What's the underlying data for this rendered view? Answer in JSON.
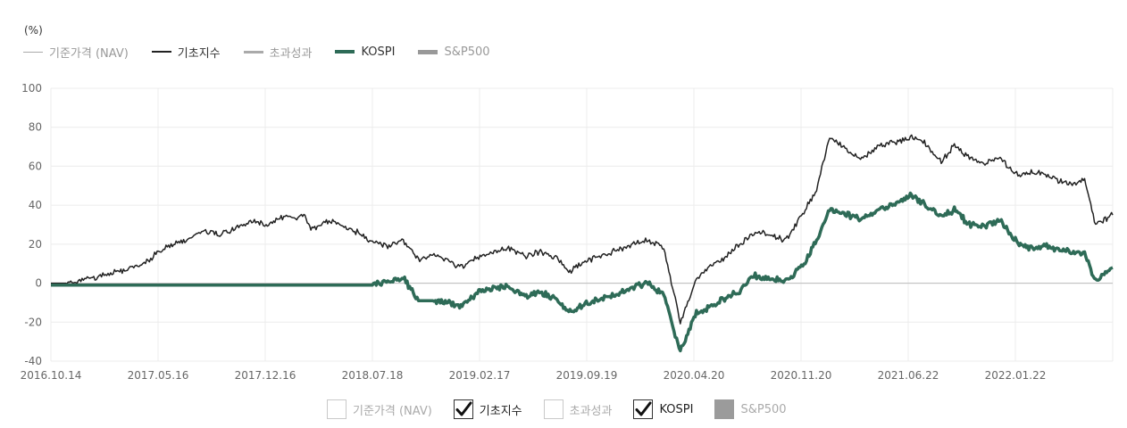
{
  "unit_label": "(%)",
  "legend": [
    {
      "label": "기준가격 (NAV)",
      "color": "#aaaaaa",
      "stroke": 1,
      "text_color": "#999999"
    },
    {
      "label": "기초지수",
      "color": "#222222",
      "stroke": 2,
      "text_color": "#333333"
    },
    {
      "label": "초과성과",
      "color": "#aaaaaa",
      "stroke": 3,
      "text_color": "#999999"
    },
    {
      "label": "KOSPI",
      "color": "#2e6b57",
      "stroke": 4,
      "text_color": "#333333"
    },
    {
      "label": "S&P500",
      "color": "#999999",
      "stroke": 5,
      "text_color": "#999999"
    }
  ],
  "toggles": [
    {
      "label": "기준가격 (NAV)",
      "checked": false,
      "filled": false
    },
    {
      "label": "기초지수",
      "checked": true,
      "filled": false
    },
    {
      "label": "초과성과",
      "checked": false,
      "filled": false
    },
    {
      "label": "KOSPI",
      "checked": true,
      "filled": false
    },
    {
      "label": "S&P500",
      "checked": false,
      "filled": true
    }
  ],
  "chart_data": {
    "type": "line",
    "ylim": [
      -40,
      100
    ],
    "y_ticks": [
      100,
      80,
      60,
      40,
      20,
      0,
      -20,
      -40
    ],
    "x_ticks": [
      "2016.10.14",
      "2017.05.16",
      "2017.12.16",
      "2018.07.18",
      "2019.02.17",
      "2019.09.19",
      "2020.04.20",
      "2020.11.20",
      "2021.06.22",
      "2022.01.22"
    ],
    "x_range": [
      "2016-10-14",
      "2022-07-27"
    ],
    "grid": true,
    "legend_position": "top-left",
    "series": [
      {
        "name": "기초지수",
        "color": "#222222",
        "width": 1.5,
        "points": [
          [
            "2016-10-14",
            0
          ],
          [
            "2016-11-15",
            0
          ],
          [
            "2016-12-15",
            2
          ],
          [
            "2017-01-15",
            3
          ],
          [
            "2017-02-15",
            6
          ],
          [
            "2017-03-15",
            7
          ],
          [
            "2017-04-15",
            10
          ],
          [
            "2017-05-16",
            16
          ],
          [
            "2017-06-15",
            20
          ],
          [
            "2017-07-15",
            23
          ],
          [
            "2017-08-15",
            27
          ],
          [
            "2017-09-15",
            25
          ],
          [
            "2017-10-15",
            28
          ],
          [
            "2017-11-15",
            32
          ],
          [
            "2017-12-16",
            30
          ],
          [
            "2018-01-15",
            34
          ],
          [
            "2018-02-15",
            33
          ],
          [
            "2018-03-01",
            36
          ],
          [
            "2018-03-15",
            27
          ],
          [
            "2018-04-15",
            32
          ],
          [
            "2018-05-15",
            30
          ],
          [
            "2018-06-15",
            26
          ],
          [
            "2018-07-18",
            21
          ],
          [
            "2018-08-15",
            19
          ],
          [
            "2018-09-15",
            22
          ],
          [
            "2018-10-15",
            12
          ],
          [
            "2018-11-15",
            15
          ],
          [
            "2018-12-15",
            11
          ],
          [
            "2019-01-05",
            8
          ],
          [
            "2019-02-17",
            14
          ],
          [
            "2019-03-15",
            16
          ],
          [
            "2019-04-15",
            18
          ],
          [
            "2019-05-15",
            14
          ],
          [
            "2019-06-15",
            16
          ],
          [
            "2019-07-15",
            13
          ],
          [
            "2019-08-10",
            6
          ],
          [
            "2019-09-19",
            12
          ],
          [
            "2019-10-15",
            14
          ],
          [
            "2019-11-15",
            17
          ],
          [
            "2019-12-15",
            20
          ],
          [
            "2020-01-15",
            22
          ],
          [
            "2020-02-15",
            18
          ],
          [
            "2020-03-19",
            -20
          ],
          [
            "2020-04-20",
            3
          ],
          [
            "2020-05-15",
            8
          ],
          [
            "2020-06-15",
            13
          ],
          [
            "2020-07-15",
            20
          ],
          [
            "2020-08-15",
            26
          ],
          [
            "2020-09-15",
            25
          ],
          [
            "2020-10-15",
            22
          ],
          [
            "2020-11-20",
            37
          ],
          [
            "2020-12-15",
            48
          ],
          [
            "2021-01-10",
            75
          ],
          [
            "2021-02-15",
            68
          ],
          [
            "2021-03-15",
            64
          ],
          [
            "2021-04-15",
            70
          ],
          [
            "2021-05-15",
            72
          ],
          [
            "2021-06-22",
            75
          ],
          [
            "2021-07-15",
            73
          ],
          [
            "2021-08-20",
            62
          ],
          [
            "2021-09-15",
            71
          ],
          [
            "2021-10-15",
            64
          ],
          [
            "2021-11-15",
            61
          ],
          [
            "2021-12-15",
            64
          ],
          [
            "2022-01-22",
            55
          ],
          [
            "2022-02-15",
            57
          ],
          [
            "2022-03-15",
            56
          ],
          [
            "2022-04-15",
            52
          ],
          [
            "2022-05-15",
            51
          ],
          [
            "2022-06-01",
            53
          ],
          [
            "2022-06-23",
            30
          ],
          [
            "2022-07-27",
            35
          ]
        ]
      },
      {
        "name": "KOSPI",
        "color": "#2e6b57",
        "width": 3.5,
        "points": [
          [
            "2016-10-14",
            -1
          ],
          [
            "2018-07-18",
            -1
          ],
          [
            "2018-08-15",
            1
          ],
          [
            "2018-09-15",
            3
          ],
          [
            "2018-10-15",
            -9
          ],
          [
            "2018-11-15",
            -9
          ],
          [
            "2018-12-15",
            -10
          ],
          [
            "2019-01-05",
            -12
          ],
          [
            "2019-02-17",
            -4
          ],
          [
            "2019-03-15",
            -3
          ],
          [
            "2019-04-15",
            -2
          ],
          [
            "2019-05-15",
            -7
          ],
          [
            "2019-06-15",
            -5
          ],
          [
            "2019-07-15",
            -8
          ],
          [
            "2019-08-10",
            -15
          ],
          [
            "2019-09-19",
            -10
          ],
          [
            "2019-10-15",
            -8
          ],
          [
            "2019-11-15",
            -6
          ],
          [
            "2019-12-15",
            -2
          ],
          [
            "2020-01-15",
            0
          ],
          [
            "2020-02-15",
            -6
          ],
          [
            "2020-03-19",
            -35
          ],
          [
            "2020-04-20",
            -15
          ],
          [
            "2020-05-15",
            -13
          ],
          [
            "2020-06-15",
            -8
          ],
          [
            "2020-07-15",
            -4
          ],
          [
            "2020-08-15",
            4
          ],
          [
            "2020-09-15",
            2
          ],
          [
            "2020-10-15",
            1
          ],
          [
            "2020-11-20",
            10
          ],
          [
            "2020-12-15",
            22
          ],
          [
            "2021-01-10",
            38
          ],
          [
            "2021-02-15",
            35
          ],
          [
            "2021-03-15",
            33
          ],
          [
            "2021-04-15",
            38
          ],
          [
            "2021-05-15",
            40
          ],
          [
            "2021-06-22",
            45
          ],
          [
            "2021-07-15",
            41
          ],
          [
            "2021-08-20",
            34
          ],
          [
            "2021-09-15",
            38
          ],
          [
            "2021-10-15",
            30
          ],
          [
            "2021-11-15",
            29
          ],
          [
            "2021-12-15",
            32
          ],
          [
            "2022-01-22",
            20
          ],
          [
            "2022-02-15",
            18
          ],
          [
            "2022-03-15",
            19
          ],
          [
            "2022-04-15",
            17
          ],
          [
            "2022-05-15",
            16
          ],
          [
            "2022-06-01",
            15
          ],
          [
            "2022-06-23",
            1
          ],
          [
            "2022-07-27",
            8
          ]
        ]
      }
    ]
  }
}
